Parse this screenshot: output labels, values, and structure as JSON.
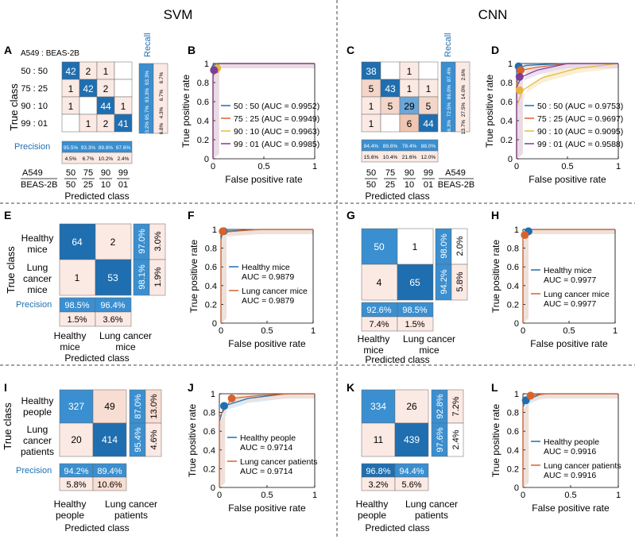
{
  "headers": {
    "svm": "SVM",
    "cnn": "CNN"
  },
  "colors": {
    "dark_blue": "#1f6fb0",
    "mid_blue": "#3a8fd0",
    "light_blue": "#cfe3f3",
    "pale_pink": "#fbe9e4",
    "peach": "#f3d6c9",
    "white": "#ffffff"
  },
  "panels": {
    "A": {
      "letter": "A",
      "subtitle": "A549 : BEAS-2B",
      "ylabel": "True class",
      "xlabel": "Predicted class",
      "rows": [
        "50 : 50",
        "75 : 25",
        "90 : 10",
        "99 : 01"
      ],
      "cols_top": [
        "50",
        "75",
        "90",
        "99"
      ],
      "cols_bottom": [
        "50",
        "25",
        "10",
        "01"
      ],
      "col_head_top": "A549",
      "col_head_bottom": "BEAS-2B",
      "matrix": [
        [
          "42",
          "2",
          "1",
          ""
        ],
        [
          "1",
          "42",
          "2",
          ""
        ],
        [
          "1",
          "",
          "44",
          "1"
        ],
        [
          "",
          "1",
          "2",
          "41"
        ]
      ],
      "recall_label": "Recall",
      "recall": [
        [
          "93.3%",
          "6.7%"
        ],
        [
          "93.3%",
          "6.7%"
        ],
        [
          "95.7%",
          "4.3%"
        ],
        [
          "93.2%",
          "6.8%"
        ]
      ],
      "precision_label": "Precision",
      "precision": [
        "95.5%",
        "93.3%",
        "89.8%",
        "97.6%"
      ],
      "precision_err": [
        "4.5%",
        "6.7%",
        "10.2%",
        "2.4%"
      ]
    },
    "C": {
      "letter": "C",
      "xlabel": "Predicted class",
      "cols_top": [
        "50",
        "75",
        "90",
        "99"
      ],
      "cols_bottom": [
        "50",
        "25",
        "10",
        "01"
      ],
      "col_head_top": "A549",
      "col_head_bottom": "BEAS-2B",
      "matrix": [
        [
          "38",
          "",
          "1",
          ""
        ],
        [
          "5",
          "43",
          "1",
          "1"
        ],
        [
          "1",
          "5",
          "29",
          "5"
        ],
        [
          "1",
          "",
          "6",
          "44"
        ]
      ],
      "recall_label": "Recall",
      "recall": [
        [
          "97.4%",
          "2.6%"
        ],
        [
          "86.0%",
          "14.0%"
        ],
        [
          "72.5%",
          "27.5%"
        ],
        [
          "86.3%",
          "13.7%"
        ]
      ],
      "precision": [
        "84.4%",
        "89.6%",
        "78.4%",
        "88.0%"
      ],
      "precision_err": [
        "15.6%",
        "10.4%",
        "21.6%",
        "12.0%"
      ]
    },
    "E": {
      "letter": "E",
      "ylabel": "True class",
      "xlabel": "Predicted class",
      "rows": [
        "Healthy mice",
        "Lung cancer mice"
      ],
      "cols": [
        "Healthy mice",
        "Lung cancer mice"
      ],
      "matrix": [
        [
          "64",
          "2"
        ],
        [
          "1",
          "53"
        ]
      ],
      "recall": [
        [
          "97.0%",
          "3.0%"
        ],
        [
          "98.1%",
          "1.9%"
        ]
      ],
      "precision_label": "Precision",
      "precision": [
        "98.5%",
        "96.4%"
      ],
      "precision_err": [
        "1.5%",
        "3.6%"
      ]
    },
    "G": {
      "letter": "G",
      "xlabel": "Predicted class",
      "cols": [
        "Healthy mice",
        "Lung cancer mice"
      ],
      "matrix": [
        [
          "50",
          "1"
        ],
        [
          "4",
          "65"
        ]
      ],
      "recall": [
        [
          "98.0%",
          "2.0%"
        ],
        [
          "94.2%",
          "5.8%"
        ]
      ],
      "precision": [
        "92.6%",
        "98.5%"
      ],
      "precision_err": [
        "7.4%",
        "1.5%"
      ]
    },
    "I": {
      "letter": "I",
      "ylabel": "True class",
      "xlabel": "Predicted class",
      "rows": [
        "Healthy people",
        "Lung cancer patients"
      ],
      "cols": [
        "Healthy people",
        "Lung cancer patients"
      ],
      "matrix": [
        [
          "327",
          "49"
        ],
        [
          "20",
          "414"
        ]
      ],
      "recall": [
        [
          "87.0%",
          "13.0%"
        ],
        [
          "95.4%",
          "4.6%"
        ]
      ],
      "precision_label": "Precision",
      "precision": [
        "94.2%",
        "89.4%"
      ],
      "precision_err": [
        "5.8%",
        "10.6%"
      ]
    },
    "K": {
      "letter": "K",
      "xlabel": "Predicted class",
      "cols": [
        "Healthy people",
        "Lung cancer patients"
      ],
      "matrix": [
        [
          "334",
          "26"
        ],
        [
          "11",
          "439"
        ]
      ],
      "recall": [
        [
          "92.8%",
          "7.2%"
        ],
        [
          "97.6%",
          "2.4%"
        ]
      ],
      "precision": [
        "96.8%",
        "94.4%"
      ],
      "precision_err": [
        "3.2%",
        "5.6%"
      ]
    }
  },
  "chart_data": [
    {
      "panel": "B",
      "type": "line",
      "title": "",
      "xlabel": "False positive rate",
      "ylabel": "True positive rate",
      "xlim": [
        0,
        1
      ],
      "ylim": [
        0,
        1
      ],
      "xticks": [
        "0",
        "0.5",
        "1"
      ],
      "yticks": [
        "0",
        "0.2",
        "0.4",
        "0.6",
        "0.8",
        "1"
      ],
      "series": [
        {
          "name": "50 : 50 (AUC = 0.9952)",
          "color": "#1f6fb0",
          "x": [
            0,
            0,
            0.02,
            0.05,
            1
          ],
          "y": [
            0,
            0.88,
            0.95,
            1,
            1
          ],
          "point": [
            0.02,
            0.95
          ]
        },
        {
          "name": "75 : 25 (AUC = 0.9949)",
          "color": "#d9622b",
          "x": [
            0,
            0,
            0.03,
            0.06,
            1
          ],
          "y": [
            0,
            0.86,
            0.94,
            1,
            1
          ],
          "point": [
            0.03,
            0.94
          ]
        },
        {
          "name": "90 : 10 (AUC = 0.9963)",
          "color": "#e8b63a",
          "x": [
            0,
            0,
            0.04,
            0.07,
            1
          ],
          "y": [
            0,
            0.9,
            0.96,
            1,
            1
          ],
          "point": [
            0.04,
            0.95
          ]
        },
        {
          "name": "99 : 01 (AUC = 0.9985)",
          "color": "#7d3c98",
          "x": [
            0,
            0,
            0.01,
            0.03,
            1
          ],
          "y": [
            0,
            0.92,
            0.95,
            1,
            1
          ],
          "point": [
            0.01,
            0.93
          ]
        }
      ]
    },
    {
      "panel": "D",
      "type": "line",
      "xlabel": "False positive rate",
      "ylabel": "True positive rate",
      "xlim": [
        0,
        1
      ],
      "ylim": [
        0,
        1
      ],
      "xticks": [
        "0",
        "0.5",
        "1"
      ],
      "yticks": [
        "0",
        "0.2",
        "0.4",
        "0.6",
        "0.8",
        "1"
      ],
      "series": [
        {
          "name": "50 : 50 (AUC = 0.9753)",
          "color": "#1f6fb0",
          "x": [
            0,
            0,
            0.02,
            0.1,
            0.45,
            1
          ],
          "y": [
            0,
            0.9,
            0.96,
            0.98,
            1,
            1
          ],
          "point": [
            0.02,
            0.97
          ]
        },
        {
          "name": "75 : 25 (AUC = 0.9697)",
          "color": "#d9622b",
          "x": [
            0,
            0,
            0.05,
            0.2,
            0.5,
            1
          ],
          "y": [
            0,
            0.8,
            0.93,
            0.96,
            1,
            1
          ],
          "point": [
            0.04,
            0.93
          ]
        },
        {
          "name": "90 : 10 (AUC = 0.9095)",
          "color": "#e8b63a",
          "x": [
            0,
            0,
            0.06,
            0.25,
            0.6,
            1
          ],
          "y": [
            0,
            0.55,
            0.72,
            0.85,
            0.95,
            1
          ],
          "point": [
            0.03,
            0.72
          ]
        },
        {
          "name": "99 : 01 (AUC = 0.9588)",
          "color": "#7d3c98",
          "x": [
            0,
            0,
            0.05,
            0.2,
            0.5,
            1
          ],
          "y": [
            0,
            0.75,
            0.86,
            0.93,
            1,
            1
          ],
          "point": [
            0.03,
            0.86
          ]
        }
      ]
    },
    {
      "panel": "F",
      "type": "line",
      "xlabel": "False positive rate",
      "ylabel": "True positive rate",
      "xlim": [
        0,
        1
      ],
      "ylim": [
        0,
        1
      ],
      "xticks": [
        "0",
        "0.5",
        "1"
      ],
      "yticks": [
        "0",
        "0.2",
        "0.4",
        "0.6",
        "0.8",
        "1"
      ],
      "series": [
        {
          "name": "Healthy mice",
          "auc": "AUC = 0.9879",
          "color": "#1f6fb0",
          "x": [
            0,
            0,
            0.03,
            0.45,
            1
          ],
          "y": [
            0,
            0.9,
            0.98,
            1,
            1
          ],
          "point": [
            0.03,
            0.98
          ]
        },
        {
          "name": "Lung cancer mice",
          "auc": "AUC = 0.9879",
          "color": "#d9622b",
          "x": [
            0,
            0,
            0.02,
            0.4,
            1
          ],
          "y": [
            0,
            0.88,
            0.97,
            1,
            1
          ],
          "point": [
            0.02,
            0.98
          ]
        }
      ]
    },
    {
      "panel": "H",
      "type": "line",
      "xlabel": "False positive rate",
      "ylabel": "True positive rate",
      "xlim": [
        0,
        1
      ],
      "ylim": [
        0,
        1
      ],
      "xticks": [
        "0",
        "0.5",
        "1"
      ],
      "yticks": [
        "0",
        "0.2",
        "0.4",
        "0.6",
        "0.8",
        "1"
      ],
      "series": [
        {
          "name": "Healthy mice",
          "auc": "AUC = 0.9977",
          "color": "#1f6fb0",
          "x": [
            0,
            0,
            0.06,
            0.1,
            1
          ],
          "y": [
            0,
            0.92,
            0.98,
            1,
            1
          ],
          "point": [
            0.06,
            0.98
          ]
        },
        {
          "name": "Lung cancer mice",
          "auc": "AUC = 0.9977",
          "color": "#d9622b",
          "x": [
            0,
            0,
            0.02,
            0.06,
            1
          ],
          "y": [
            0,
            0.9,
            0.94,
            1,
            1
          ],
          "point": [
            0.02,
            0.94
          ]
        }
      ]
    },
    {
      "panel": "J",
      "type": "line",
      "xlabel": "False positive rate",
      "ylabel": "True positive rate",
      "xlim": [
        0,
        1
      ],
      "ylim": [
        0,
        1
      ],
      "xticks": [
        "0",
        "0.5",
        "1"
      ],
      "yticks": [
        "0",
        "0.2",
        "0.4",
        "0.6",
        "0.8",
        "1"
      ],
      "series": [
        {
          "name": "Healthy people",
          "auc": "AUC = 0.9714",
          "color": "#1f6fb0",
          "x": [
            0,
            0,
            0.05,
            0.3,
            0.7,
            1
          ],
          "y": [
            0,
            0.7,
            0.87,
            0.95,
            1,
            1
          ],
          "point": [
            0.05,
            0.87
          ]
        },
        {
          "name": "Lung cancer patients",
          "auc": "AUC = 0.9714",
          "color": "#d9622b",
          "x": [
            0,
            0,
            0.13,
            0.4,
            0.75,
            1
          ],
          "y": [
            0,
            0.75,
            0.95,
            0.98,
            1,
            1
          ],
          "point": [
            0.13,
            0.95
          ]
        }
      ]
    },
    {
      "panel": "L",
      "type": "line",
      "xlabel": "False positive rate",
      "ylabel": "True positive rate",
      "xlim": [
        0,
        1
      ],
      "ylim": [
        0,
        1
      ],
      "xticks": [
        "0",
        "0.5",
        "1"
      ],
      "yticks": [
        "0",
        "0.2",
        "0.4",
        "0.6",
        "0.8",
        "1"
      ],
      "series": [
        {
          "name": "Healthy people",
          "auc": "AUC = 0.9916",
          "color": "#1f6fb0",
          "x": [
            0,
            0,
            0.03,
            0.2,
            1
          ],
          "y": [
            0,
            0.85,
            0.93,
            1,
            1
          ],
          "point": [
            0.03,
            0.93
          ]
        },
        {
          "name": "Lung cancer patients",
          "auc": "AUC = 0.9916",
          "color": "#d9622b",
          "x": [
            0,
            0,
            0.08,
            0.25,
            1
          ],
          "y": [
            0,
            0.88,
            0.98,
            1,
            1
          ],
          "point": [
            0.08,
            0.98
          ]
        }
      ]
    }
  ]
}
